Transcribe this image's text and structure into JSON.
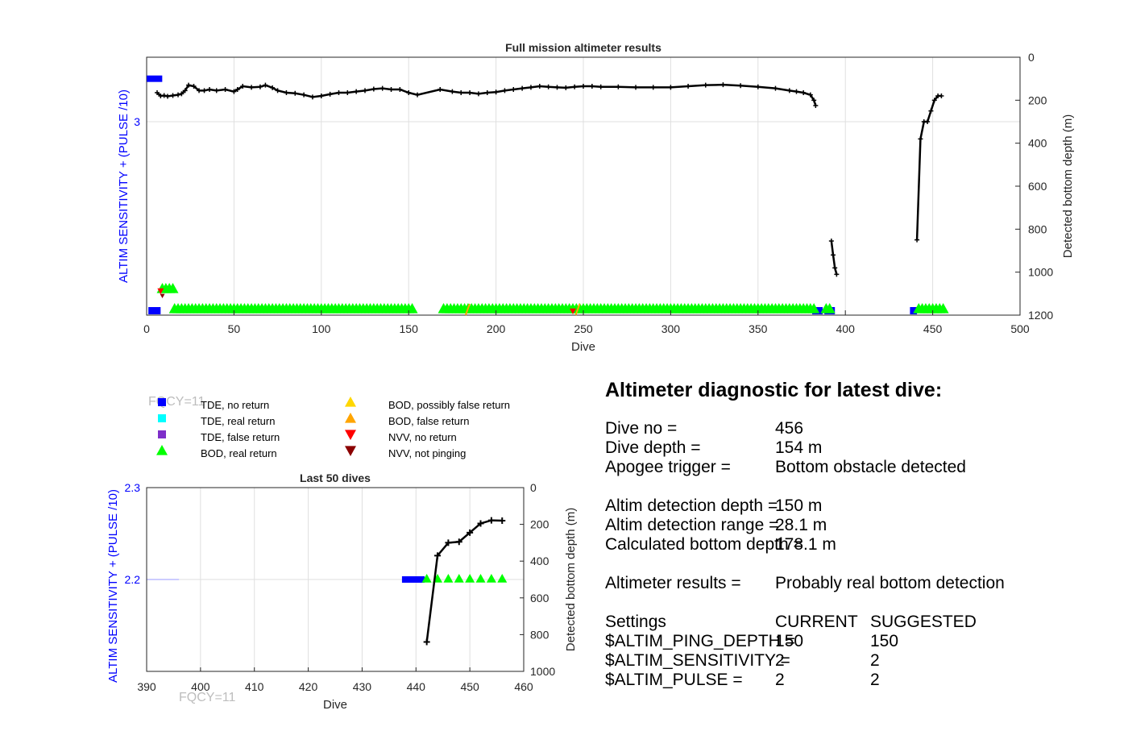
{
  "chart_data": [
    {
      "type": "scatter",
      "title": "Full mission altimeter results",
      "xlabel": "Dive",
      "ylabel_left": "ALTIM SENSITIVITY + (PULSE /10)",
      "ylabel_right": "Detected bottom depth (m)",
      "xlim": [
        0,
        500
      ],
      "xticks": [
        0,
        50,
        100,
        150,
        200,
        250,
        300,
        350,
        400,
        450,
        500
      ],
      "ylim_left": [
        2.4,
        3.2
      ],
      "yticks_left": [
        3
      ],
      "ylim_right": [
        0,
        1200
      ],
      "yticks_right": [
        0,
        200,
        400,
        600,
        800,
        1000,
        1200
      ],
      "grid": true,
      "bottom_depth_segments": [
        [
          [
            6,
            165
          ],
          [
            8,
            180
          ],
          [
            10,
            178
          ],
          [
            12,
            182
          ],
          [
            15,
            178
          ],
          [
            18,
            175
          ],
          [
            20,
            170
          ],
          [
            22,
            155
          ],
          [
            24,
            130
          ],
          [
            27,
            135
          ],
          [
            30,
            155
          ],
          [
            33,
            155
          ],
          [
            36,
            150
          ],
          [
            40,
            155
          ],
          [
            45,
            150
          ],
          [
            50,
            160
          ],
          [
            52,
            150
          ],
          [
            55,
            135
          ],
          [
            60,
            140
          ],
          [
            65,
            138
          ],
          [
            68,
            130
          ],
          [
            72,
            142
          ],
          [
            75,
            155
          ],
          [
            80,
            165
          ],
          [
            85,
            168
          ],
          [
            90,
            175
          ],
          [
            95,
            185
          ],
          [
            100,
            180
          ],
          [
            105,
            172
          ],
          [
            110,
            165
          ],
          [
            115,
            165
          ],
          [
            120,
            160
          ],
          [
            125,
            155
          ],
          [
            130,
            148
          ],
          [
            135,
            145
          ],
          [
            140,
            150
          ],
          [
            145,
            150
          ],
          [
            150,
            165
          ],
          [
            155,
            175
          ],
          [
            168,
            150
          ],
          [
            175,
            160
          ],
          [
            180,
            165
          ],
          [
            185,
            165
          ],
          [
            190,
            170
          ],
          [
            195,
            165
          ],
          [
            200,
            162
          ],
          [
            205,
            155
          ],
          [
            210,
            150
          ],
          [
            215,
            145
          ],
          [
            220,
            140
          ],
          [
            225,
            135
          ],
          [
            230,
            138
          ],
          [
            235,
            140
          ],
          [
            240,
            142
          ],
          [
            245,
            138
          ],
          [
            250,
            135
          ],
          [
            255,
            135
          ],
          [
            260,
            138
          ],
          [
            270,
            138
          ],
          [
            280,
            140
          ],
          [
            290,
            140
          ],
          [
            300,
            140
          ],
          [
            310,
            135
          ],
          [
            320,
            130
          ],
          [
            330,
            128
          ],
          [
            340,
            132
          ],
          [
            350,
            138
          ],
          [
            360,
            145
          ],
          [
            368,
            155
          ],
          [
            372,
            160
          ],
          [
            376,
            165
          ],
          [
            380,
            175
          ],
          [
            382,
            200
          ],
          [
            383,
            225
          ]
        ],
        [
          [
            392,
            855
          ],
          [
            393,
            920
          ],
          [
            394,
            980
          ],
          [
            395,
            1010
          ]
        ],
        [
          [
            441,
            850
          ],
          [
            443,
            380
          ],
          [
            445,
            300
          ],
          [
            447,
            300
          ],
          [
            449,
            250
          ],
          [
            451,
            200
          ],
          [
            453,
            180
          ],
          [
            455,
            180
          ]
        ]
      ],
      "tde_no_return_dives": [
        [
          1,
          8
        ],
        [
          381,
          387
        ],
        [
          388,
          394
        ],
        [
          437,
          441
        ]
      ],
      "tde_no_return_top": [
        [
          1,
          8
        ]
      ],
      "bod_real_return_segments": [
        [
          9,
          16
        ],
        [
          16,
          152
        ],
        [
          170,
          382
        ],
        [
          389,
          391
        ],
        [
          442,
          457
        ]
      ],
      "bod_false_return_dives": [
        184,
        247
      ],
      "nvv_no_return_dives": [
        8,
        244
      ],
      "nvv_not_pinging_dives": [
        9
      ]
    },
    {
      "type": "scatter",
      "title": "Last 50 dives",
      "xlabel": "Dive",
      "ylabel_left": "ALTIM SENSITIVITY + (PULSE /10)",
      "ylabel_right": "Detected bottom depth (m)",
      "xlim": [
        390,
        460
      ],
      "xticks": [
        390,
        400,
        410,
        420,
        430,
        440,
        450,
        460
      ],
      "ylim_left": [
        2.1,
        2.3
      ],
      "yticks_left": [
        2.2,
        2.3
      ],
      "ylim_right": [
        0,
        1000
      ],
      "yticks_right": [
        0,
        200,
        400,
        600,
        800,
        1000
      ],
      "grid": true,
      "bottom_depth": [
        [
          442,
          840
        ],
        [
          444,
          370
        ],
        [
          446,
          300
        ],
        [
          448,
          295
        ],
        [
          450,
          245
        ],
        [
          452,
          195
        ],
        [
          454,
          178
        ],
        [
          456,
          180
        ]
      ],
      "tde_no_return_dives": [
        438,
        439,
        440,
        441
      ],
      "bod_real_return_dives": [
        442,
        444,
        446,
        448,
        450,
        452,
        454,
        456
      ],
      "fqcy_label": "FQCY=11"
    }
  ],
  "legend": {
    "fqcy_overlay": "FQCY=11",
    "items": [
      {
        "label": "TDE, no return",
        "color": "#0000ff",
        "marker": "square"
      },
      {
        "label": "TDE, real return",
        "color": "#00ffff",
        "marker": "square"
      },
      {
        "label": "TDE, false return",
        "color": "#7e2fc9",
        "marker": "square"
      },
      {
        "label": "BOD, real return",
        "color": "#00ff00",
        "marker": "triangle-up"
      },
      {
        "label": "BOD, possibly false return",
        "color": "#ffd700",
        "marker": "triangle-up"
      },
      {
        "label": "BOD, false return",
        "color": "#ffa500",
        "marker": "triangle-up"
      },
      {
        "label": "NVV, no return",
        "color": "#ff0000",
        "marker": "triangle-down"
      },
      {
        "label": "NVV, not pinging",
        "color": "#8b0000",
        "marker": "triangle-down"
      }
    ]
  },
  "diagnostic": {
    "title": "Altimeter diagnostic for latest dive:",
    "dive_no_label": "Dive no =",
    "dive_no": "456",
    "dive_depth_label": "Dive depth =",
    "dive_depth": "154 m",
    "apogee_label": "Apogee trigger =",
    "apogee": "Bottom obstacle detected",
    "detection_depth_label": "Altim detection depth =",
    "detection_depth": "150 m",
    "detection_range_label": "Altim detection range =",
    "detection_range": "28.1 m",
    "bottom_depth_label": "Calculated bottom depth =",
    "bottom_depth": "178.1 m",
    "results_label": "Altimeter results =",
    "results": "Probably real bottom detection",
    "settings_label": "Settings",
    "current_label": "CURRENT",
    "suggested_label": "SUGGESTED",
    "settings": [
      {
        "name": "$ALTIM_PING_DEPTH =",
        "current": "150",
        "suggested": "150"
      },
      {
        "name": "$ALTIM_SENSITIVITY =",
        "current": "2",
        "suggested": "2"
      },
      {
        "name": "$ALTIM_PULSE =",
        "current": "2",
        "suggested": "2"
      }
    ]
  }
}
